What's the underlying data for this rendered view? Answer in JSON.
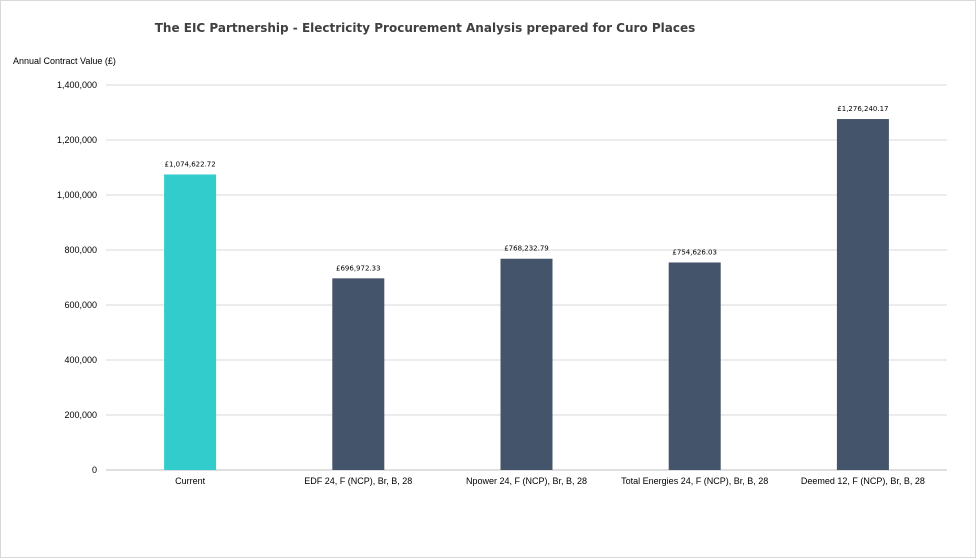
{
  "chart_data": {
    "type": "bar",
    "title": "The EIC Partnership  - Electricity Procurement Analysis prepared for Curo Places",
    "ylabel": "Annual Contract Value (£)",
    "xlabel": "",
    "ylim": [
      0,
      1400000
    ],
    "ytick_labels": [
      "0",
      "200,000",
      "400,000",
      "600,000",
      "800,000",
      "1,000,000",
      "1,200,000",
      "1,400,000"
    ],
    "ytick_values": [
      0,
      200000,
      400000,
      600000,
      800000,
      1000000,
      1200000,
      1400000
    ],
    "categories": [
      "Current",
      "EDF 24, F (NCP), Br, B, 28",
      "Npower 24, F (NCP), Br, B, 28",
      "Total Energies 24, F (NCP), Br, B, 28",
      "Deemed 12, F (NCP), Br, B, 28"
    ],
    "values": [
      1074622.72,
      696972.33,
      768232.79,
      754626.03,
      1276240.17
    ],
    "data_labels": [
      "£1,074,622.72",
      "£696,972.33",
      "£768,232.79",
      "£754,626.03",
      "£1,276,240.17"
    ],
    "bar_colors": [
      "#33CCCC",
      "#44546A",
      "#44546A",
      "#44546A",
      "#44546A"
    ],
    "grid": true,
    "gridline_color": "#d9d9d9",
    "legend": "none"
  }
}
